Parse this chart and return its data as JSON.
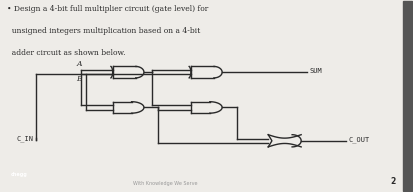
{
  "bg_color": "#eeece8",
  "text_color": "#2a2a2a",
  "gate_color": "#2a2a2a",
  "line_color": "#2a2a2a",
  "title_lines": [
    "• Design a 4-bit full multiplier circuit (gate level) for",
    "  unsigned integers multiplication based on a 4-bit",
    "  adder circuit as shown below."
  ],
  "footer_text": "With Knowledge We Serve",
  "page_num": "2"
}
